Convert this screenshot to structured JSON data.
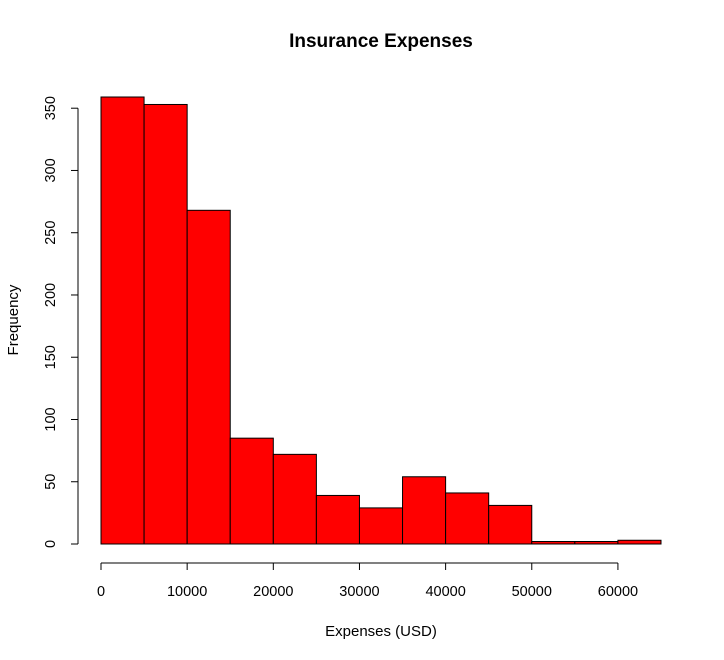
{
  "chart_data": {
    "type": "bar",
    "subtype": "histogram",
    "title": "Insurance Expenses",
    "xlabel": "Expenses (USD)",
    "ylabel": "Frequency",
    "bin_edges": [
      0,
      5000,
      10000,
      15000,
      20000,
      25000,
      30000,
      35000,
      40000,
      45000,
      50000,
      55000,
      60000,
      65000
    ],
    "values": [
      359,
      353,
      268,
      85,
      72,
      39,
      29,
      54,
      41,
      31,
      2,
      2,
      3
    ],
    "xlim": [
      0,
      65000
    ],
    "ylim": [
      0,
      359
    ],
    "x_ticks": [
      0,
      10000,
      20000,
      30000,
      40000,
      50000,
      60000
    ],
    "x_tick_labels": [
      "0",
      "10000",
      "20000",
      "30000",
      "40000",
      "50000",
      "60000"
    ],
    "y_ticks": [
      0,
      50,
      100,
      150,
      200,
      250,
      300,
      350
    ],
    "y_tick_labels": [
      "0",
      "50",
      "100",
      "150",
      "200",
      "250",
      "300",
      "350"
    ],
    "bar_color": "#ff0000",
    "bar_edge_color": "#000000",
    "grid": false,
    "legend": "none"
  }
}
